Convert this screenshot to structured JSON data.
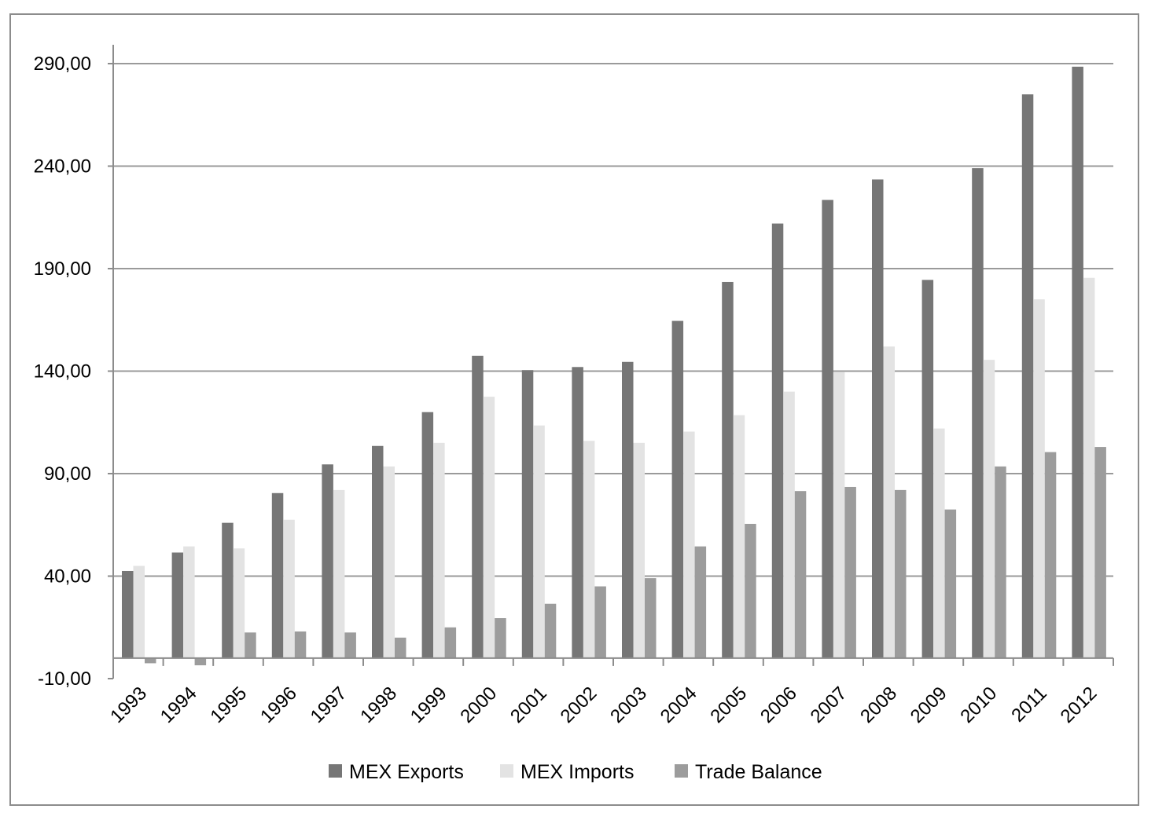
{
  "colors": {
    "exports": "#767676",
    "imports": "#e3e3e3",
    "balance": "#9c9c9c",
    "grid": "#9a9a9a",
    "axis": "#8c8c8c"
  },
  "chart_data": {
    "type": "bar",
    "title": "",
    "xlabel": "",
    "ylabel": "",
    "ylim": [
      -10,
      290
    ],
    "yticks": [
      "290,00",
      "240,00",
      "190,00",
      "140,00",
      "90,00",
      "40,00",
      "-10,00"
    ],
    "ytick_values": [
      290,
      240,
      190,
      140,
      90,
      40,
      -10
    ],
    "grid": true,
    "legend_position": "bottom",
    "categories": [
      "1993",
      "1994",
      "1995",
      "1996",
      "1997",
      "1998",
      "1999",
      "2000",
      "2001",
      "2002",
      "2003",
      "2004",
      "2005",
      "2006",
      "2007",
      "2008",
      "2009",
      "2010",
      "2011",
      "2012"
    ],
    "series": [
      {
        "name": "MEX Exports",
        "values": [
          42.5,
          51.5,
          66,
          80.5,
          94.5,
          103.5,
          120,
          147.5,
          140.5,
          142,
          144.5,
          164.5,
          183.5,
          212,
          223.5,
          233.5,
          184.5,
          239,
          275,
          288.5
        ]
      },
      {
        "name": "MEX Imports",
        "values": [
          45,
          54.5,
          53.5,
          67.5,
          82,
          93.5,
          105,
          127.5,
          113.5,
          106,
          105,
          110.5,
          118.5,
          130,
          139.5,
          152,
          112,
          145.5,
          175,
          185.5
        ]
      },
      {
        "name": "Trade Balance",
        "values": [
          -2.5,
          -3.5,
          12.5,
          13,
          12.5,
          10,
          15,
          19.5,
          26.5,
          35,
          39,
          54.5,
          65.5,
          81.5,
          83.5,
          82,
          72.5,
          93.5,
          100.5,
          103
        ]
      }
    ]
  }
}
